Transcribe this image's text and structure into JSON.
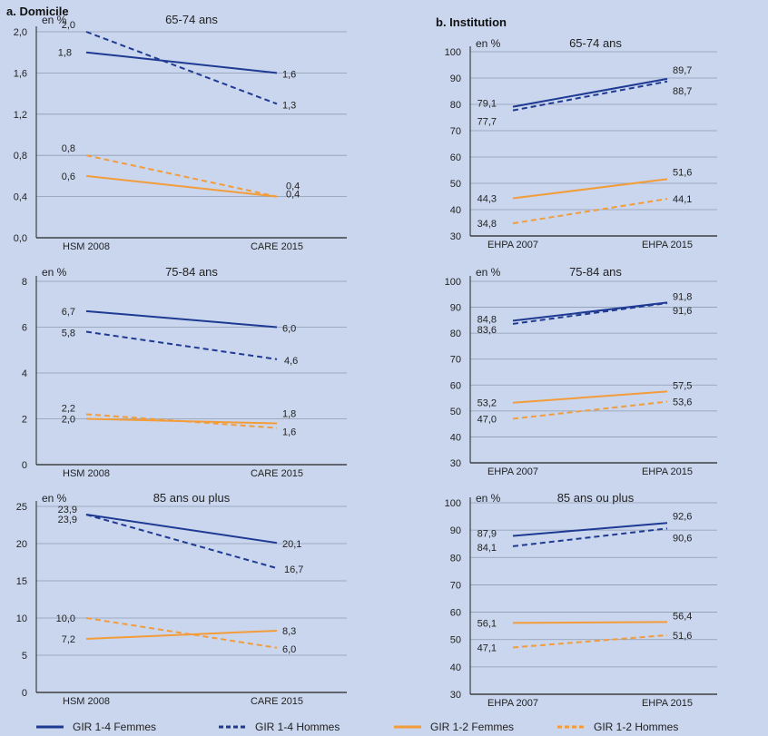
{
  "panels": {
    "domicile": {
      "title": "a. Domicile"
    },
    "institution": {
      "title": "b. Institution"
    }
  },
  "legend": [
    {
      "label": "GIR 1-4 Femmes",
      "color": "#1f3a93",
      "dash": false
    },
    {
      "label": "GIR 1-4 Hommes",
      "color": "#1f3a93",
      "dash": true
    },
    {
      "label": "GIR 1-2 Femmes",
      "color": "#f39c3a",
      "dash": false
    },
    {
      "label": "GIR 1-2 Hommes",
      "color": "#f39c3a",
      "dash": true
    }
  ],
  "colors": {
    "background": "#c9d6ee",
    "navy": "#1f3a93",
    "orange": "#f39c3a",
    "grid": "#8e9bb0"
  },
  "chart_data": [
    {
      "type": "line",
      "panel": "domicile",
      "title": "65-74 ans",
      "ylabel": "en %",
      "categories": [
        "HSM 2008",
        "CARE 2015"
      ],
      "ylim": [
        0,
        2.0
      ],
      "yticks": [
        "0,0",
        "0,4",
        "0,8",
        "1,2",
        "1,6",
        "2,0"
      ],
      "series": [
        {
          "name": "GIR 1-4 Femmes",
          "values": [
            1.8,
            1.6
          ],
          "labels": [
            "1,8",
            "1,6"
          ]
        },
        {
          "name": "GIR 1-4 Hommes",
          "values": [
            2.0,
            1.3
          ],
          "labels": [
            "2,0",
            "1,3"
          ]
        },
        {
          "name": "GIR 1-2 Femmes",
          "values": [
            0.6,
            0.4
          ],
          "labels": [
            "0,6",
            "0,4"
          ]
        },
        {
          "name": "GIR 1-2 Hommes",
          "values": [
            0.8,
            0.4
          ],
          "labels": [
            "0,8",
            "0,4"
          ]
        }
      ]
    },
    {
      "type": "line",
      "panel": "domicile",
      "title": "75-84 ans",
      "ylabel": "en %",
      "categories": [
        "HSM 2008",
        "CARE 2015"
      ],
      "ylim": [
        0,
        8
      ],
      "yticks": [
        "0",
        "2",
        "4",
        "6",
        "8"
      ],
      "series": [
        {
          "name": "GIR 1-4 Femmes",
          "values": [
            6.7,
            6.0
          ],
          "labels": [
            "6,7",
            "6,0"
          ]
        },
        {
          "name": "GIR 1-4 Hommes",
          "values": [
            5.8,
            4.6
          ],
          "labels": [
            "5,8",
            "4,6"
          ]
        },
        {
          "name": "GIR 1-2 Femmes",
          "values": [
            2.0,
            1.8
          ],
          "labels": [
            "2,0",
            "1,8"
          ]
        },
        {
          "name": "GIR 1-2 Hommes",
          "values": [
            2.2,
            1.6
          ],
          "labels": [
            "2,2",
            "1,6"
          ]
        }
      ]
    },
    {
      "type": "line",
      "panel": "domicile",
      "title": "85 ans ou plus",
      "ylabel": "en %",
      "categories": [
        "HSM 2008",
        "CARE 2015"
      ],
      "ylim": [
        0,
        25
      ],
      "yticks": [
        "0",
        "5",
        "10",
        "15",
        "20",
        "25"
      ],
      "series": [
        {
          "name": "GIR 1-4 Femmes",
          "values": [
            23.9,
            20.1
          ],
          "labels": [
            "23,9",
            "20,1"
          ]
        },
        {
          "name": "GIR 1-4 Hommes",
          "values": [
            23.9,
            16.7
          ],
          "labels": [
            "23,9",
            "16,7"
          ]
        },
        {
          "name": "GIR 1-2 Femmes",
          "values": [
            7.2,
            8.3
          ],
          "labels": [
            "7,2",
            "8,3"
          ]
        },
        {
          "name": "GIR 1-2 Hommes",
          "values": [
            10.0,
            6.0
          ],
          "labels": [
            "10,0",
            "6,0"
          ]
        }
      ]
    },
    {
      "type": "line",
      "panel": "institution",
      "title": "65-74 ans",
      "ylabel": "en %",
      "categories": [
        "EHPA 2007",
        "EHPA 2015"
      ],
      "ylim": [
        30,
        100
      ],
      "yticks": [
        "30",
        "40",
        "50",
        "60",
        "70",
        "80",
        "90",
        "100"
      ],
      "series": [
        {
          "name": "GIR 1-4 Femmes",
          "values": [
            79.1,
            89.7
          ],
          "labels": [
            "79,1",
            "89,7"
          ]
        },
        {
          "name": "GIR 1-4 Hommes",
          "values": [
            77.7,
            88.7
          ],
          "labels": [
            "77,7",
            "88,7"
          ]
        },
        {
          "name": "GIR 1-2 Femmes",
          "values": [
            44.3,
            51.6
          ],
          "labels": [
            "44,3",
            "51,6"
          ]
        },
        {
          "name": "GIR 1-2 Hommes",
          "values": [
            34.8,
            44.1
          ],
          "labels": [
            "34,8",
            "44,1"
          ]
        }
      ]
    },
    {
      "type": "line",
      "panel": "institution",
      "title": "75-84 ans",
      "ylabel": "en %",
      "categories": [
        "EHPA 2007",
        "EHPA 2015"
      ],
      "ylim": [
        30,
        100
      ],
      "yticks": [
        "30",
        "40",
        "50",
        "60",
        "70",
        "80",
        "90",
        "100"
      ],
      "series": [
        {
          "name": "GIR 1-4 Femmes",
          "values": [
            84.8,
            91.8
          ],
          "labels": [
            "84,8",
            "91,8"
          ]
        },
        {
          "name": "GIR 1-4 Hommes",
          "values": [
            83.6,
            91.6
          ],
          "labels": [
            "83,6",
            "91,6"
          ]
        },
        {
          "name": "GIR 1-2 Femmes",
          "values": [
            53.2,
            57.5
          ],
          "labels": [
            "53,2",
            "57,5"
          ]
        },
        {
          "name": "GIR 1-2 Hommes",
          "values": [
            47.0,
            53.6
          ],
          "labels": [
            "47,0",
            "53,6"
          ]
        }
      ]
    },
    {
      "type": "line",
      "panel": "institution",
      "title": "85 ans ou plus",
      "ylabel": "en %",
      "categories": [
        "EHPA 2007",
        "EHPA 2015"
      ],
      "ylim": [
        30,
        100
      ],
      "yticks": [
        "30",
        "40",
        "50",
        "60",
        "70",
        "80",
        "90",
        "100"
      ],
      "series": [
        {
          "name": "GIR 1-4 Femmes",
          "values": [
            87.9,
            92.6
          ],
          "labels": [
            "87,9",
            "92,6"
          ]
        },
        {
          "name": "GIR 1-4 Hommes",
          "values": [
            84.1,
            90.6
          ],
          "labels": [
            "84,1",
            "90,6"
          ]
        },
        {
          "name": "GIR 1-2 Femmes",
          "values": [
            56.1,
            56.4
          ],
          "labels": [
            "56,1",
            "56,4"
          ]
        },
        {
          "name": "GIR 1-2 Hommes",
          "values": [
            47.1,
            51.6
          ],
          "labels": [
            "47,1",
            "51,6"
          ]
        }
      ]
    }
  ]
}
